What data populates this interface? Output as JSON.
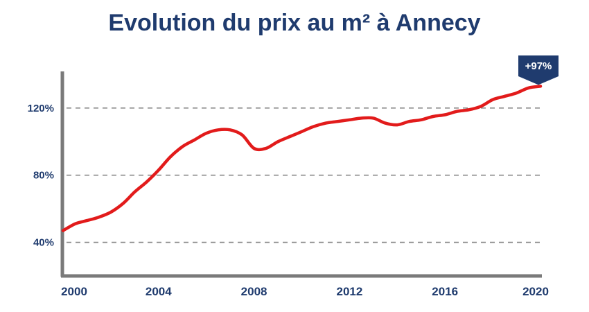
{
  "chart_data": {
    "type": "line",
    "title": "Evolution du prix au m² à Annecy",
    "xlabel": "",
    "ylabel": "",
    "xlim": [
      2000,
      2020
    ],
    "ylim": [
      20,
      141
    ],
    "x_ticks": [
      {
        "value": 2000,
        "label": "2000"
      },
      {
        "value": 2004,
        "label": "2004"
      },
      {
        "value": 2008,
        "label": "2008"
      },
      {
        "value": 2012,
        "label": "2012"
      },
      {
        "value": 2016,
        "label": "2016"
      },
      {
        "value": 2020,
        "label": "2020"
      }
    ],
    "y_ticks": [
      {
        "value": 40,
        "label": "40%"
      },
      {
        "value": 80,
        "label": "80%"
      },
      {
        "value": 120,
        "label": "120%"
      }
    ],
    "grid": "horizontal-dashed",
    "series": [
      {
        "color": "#e21b1b",
        "x": [
          2000,
          2000.5,
          2001,
          2001.5,
          2002,
          2002.5,
          2003,
          2003.5,
          2004,
          2004.5,
          2005,
          2005.5,
          2006,
          2006.5,
          2007,
          2007.5,
          2008,
          2008.5,
          2009,
          2009.5,
          2010,
          2010.5,
          2011,
          2011.5,
          2012,
          2012.5,
          2013,
          2013.5,
          2014,
          2014.5,
          2015,
          2015.5,
          2016,
          2016.5,
          2017,
          2017.5,
          2018,
          2018.5,
          2019,
          2019.5,
          2020
        ],
        "values": [
          47,
          51,
          53,
          55,
          58,
          63,
          70,
          76,
          83,
          91,
          97,
          101,
          105,
          107,
          107,
          104,
          96,
          96,
          100,
          103,
          106,
          109,
          111,
          112,
          113,
          114,
          114,
          111,
          110,
          112,
          113,
          115,
          116,
          118,
          119,
          121,
          125,
          127,
          129,
          132,
          133
        ]
      }
    ],
    "annotations": [
      {
        "text": "+97%",
        "x": 2020,
        "y": 133,
        "color": "#1f3b6e"
      }
    ]
  }
}
